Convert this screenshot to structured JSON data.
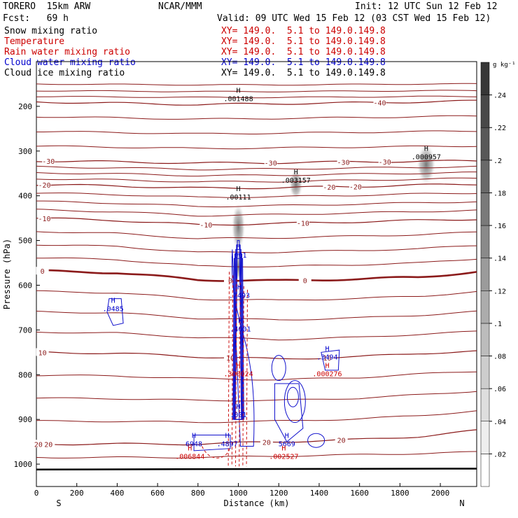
{
  "header": {
    "model": "TORERO  15km ARW",
    "org": "NCAR/MMM",
    "init": "Init: 12 UTC Sun 12 Feb 12",
    "fcst": "Fcst:   69 h",
    "valid": "Valid: 09 UTC Wed 15 Feb 12 (03 CST Wed 15 Feb 12)"
  },
  "legend": [
    {
      "name": "Snow mixing ratio",
      "xy": "XY= 149.0.  5.1 to 149.0.149.8",
      "color": "#000000"
    },
    {
      "name": "Temperature",
      "xy": "XY= 149.0.  5.1 to 149.0.149.8",
      "color": "#cc0000"
    },
    {
      "name": "Rain water mixing ratio",
      "xy": "XY= 149.0.  5.1 to 149.0.149.8",
      "color": "#cc0000"
    },
    {
      "name": "Cloud water mixing ratio",
      "xy": "XY= 149.0.  5.1 to 149.0.149.8",
      "color": "#0000cc"
    },
    {
      "name": "Cloud ice mixing ratio",
      "xy": "XY= 149.0.  5.1 to 149.0.149.8",
      "color": "#000000"
    }
  ],
  "colorbar": {
    "unit": "g kg⁻¹",
    "ticks": [
      ".02",
      ".04",
      ".06",
      ".08",
      ".1",
      ".12",
      ".14",
      ".16",
      ".18",
      ".2",
      ".22",
      ".24"
    ]
  },
  "chart_data": {
    "type": "contour cross-section",
    "xlabel": "Distance (km)",
    "ylabel": "Pressure (hPa)",
    "xlim": [
      0,
      2180
    ],
    "ylim": [
      1050,
      100
    ],
    "xticks": [
      0,
      200,
      400,
      600,
      800,
      1000,
      1200,
      1400,
      1600,
      1800,
      2000
    ],
    "yticks": [
      200,
      300,
      400,
      500,
      600,
      700,
      800,
      900,
      1000
    ],
    "end_labels": {
      "left": "S",
      "right": "N"
    },
    "temperature_isotherms": [
      {
        "label": "-40",
        "p": [
          190,
          193,
          196,
          194,
          192,
          190,
          188
        ],
        "x": [
          0,
          400,
          800,
          1200,
          1600,
          1900,
          2180
        ],
        "labels_at": [
          [
            1700,
            -40
          ]
        ]
      },
      {
        "label": "-30",
        "p": [
          322,
          324,
          327,
          326,
          324,
          323,
          322
        ],
        "labels_at": [
          [
            60,
            -30
          ],
          [
            1160,
            -30
          ],
          [
            1520,
            -30
          ],
          [
            1725,
            -30
          ]
        ]
      },
      {
        "label": "-20",
        "p": [
          375,
          378,
          383,
          382,
          379,
          376,
          374
        ],
        "labels_at": [
          [
            40,
            -20
          ],
          [
            1450,
            -20
          ],
          [
            1580,
            -20
          ]
        ]
      },
      {
        "label": "-10",
        "p": [
          450,
          455,
          465,
          462,
          458,
          455,
          452
        ],
        "labels_at": [
          [
            40,
            -10
          ],
          [
            840,
            -10
          ],
          [
            1320,
            -10
          ]
        ]
      },
      {
        "label": "0",
        "p": [
          568,
          572,
          588,
          590,
          586,
          582,
          570
        ],
        "labels_at": [
          [
            30,
            0
          ],
          [
            960,
            0
          ],
          [
            1330,
            0
          ]
        ]
      },
      {
        "label": "10",
        "p": [
          750,
          752,
          760,
          765,
          760,
          752,
          748
        ],
        "labels_at": [
          [
            30,
            10
          ],
          [
            960,
            10
          ],
          [
            1440,
            10
          ]
        ]
      },
      {
        "label": "20",
        "p": [
          955,
          955,
          955,
          950,
          945,
          938,
          925
        ],
        "labels_at": [
          [
            10,
            20
          ],
          [
            60,
            20
          ],
          [
            1140,
            20
          ],
          [
            1510,
            20
          ]
        ]
      }
    ],
    "maxima_labels": [
      {
        "text": ".001488",
        "x": 1000,
        "p": 185,
        "color": "#000000"
      },
      {
        "text": ".00111",
        "x": 1000,
        "p": 405,
        "color": "#000000"
      },
      {
        "text": ".003157",
        "x": 1285,
        "p": 368,
        "color": "#000000"
      },
      {
        "text": ".000957",
        "x": 1930,
        "p": 315,
        "color": "#000000"
      },
      {
        "text": ".001",
        "x": 1000,
        "p": 535,
        "color": "#0000cc"
      },
      {
        "text": ".7493",
        "x": 1005,
        "p": 625,
        "color": "#0000cc"
      },
      {
        "text": ".0485",
        "x": 380,
        "p": 655,
        "color": "#0000cc"
      },
      {
        "text": ".4001",
        "x": 1010,
        "p": 700,
        "color": "#0000cc"
      },
      {
        "text": ".300024",
        "x": 1000,
        "p": 800,
        "color": "#cc0000"
      },
      {
        "text": ".3494",
        "x": 1440,
        "p": 763,
        "color": "#0000cc"
      },
      {
        "text": ".000276",
        "x": 1440,
        "p": 800,
        "color": "#cc0000"
      },
      {
        "text": ".001",
        "x": 1000,
        "p": 892,
        "color": "#0000cc"
      },
      {
        "text": "6948",
        "x": 780,
        "p": 957,
        "color": "#0000cc"
      },
      {
        "text": ".006844",
        "x": 760,
        "p": 985,
        "color": "#cc0000"
      },
      {
        "text": ".4897",
        "x": 945,
        "p": 957,
        "color": "#0000cc"
      },
      {
        "text": "5669",
        "x": 1240,
        "p": 957,
        "color": "#0000cc"
      },
      {
        "text": ".002527",
        "x": 1225,
        "p": 985,
        "color": "#cc0000"
      }
    ]
  }
}
